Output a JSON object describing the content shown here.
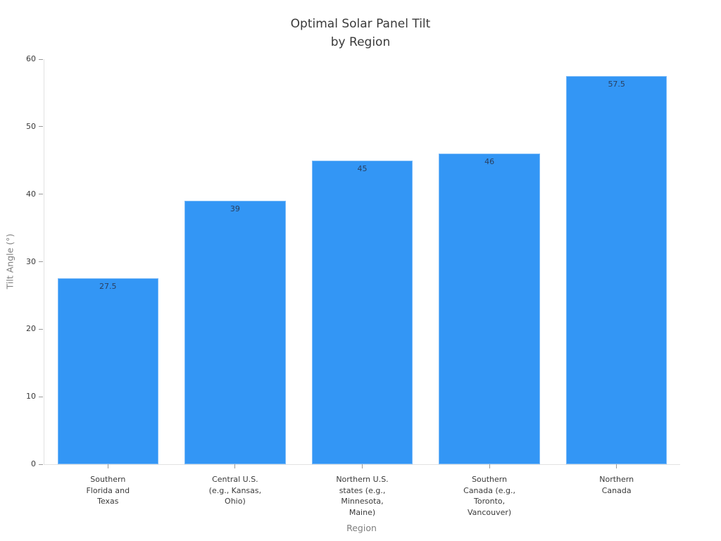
{
  "chart_data": {
    "type": "bar",
    "title": "Optimal Solar Panel Tilt by Region",
    "title_lines": [
      "Optimal Solar Panel Tilt",
      "by Region"
    ],
    "xlabel": "Region",
    "ylabel": "Tilt Angle (°)",
    "categories": [
      [
        "Southern",
        "Florida and",
        "Texas"
      ],
      [
        "Central U.S.",
        "(e.g., Kansas,",
        "Ohio)"
      ],
      [
        "Northern U.S.",
        "states (e.g.,",
        "Minnesota,",
        "Maine)"
      ],
      [
        "Southern",
        "Canada (e.g.,",
        "Toronto,",
        "Vancouver)"
      ],
      [
        "Northern",
        "Canada"
      ]
    ],
    "values": [
      27.5,
      39,
      45,
      46,
      57.5
    ],
    "value_labels": [
      "27.5",
      "39",
      "45",
      "46",
      "57.5"
    ],
    "yticks": [
      0,
      10,
      20,
      30,
      40,
      50,
      60
    ],
    "ylim": [
      0,
      60
    ],
    "grid": false,
    "legend": false,
    "background_color": "#ffffff",
    "bar_color": "#3396f5",
    "value_label_color": "#2a3f5f",
    "axis_line_color": "#e2e2e2",
    "tick_label_color": "#3a3a3a",
    "axis_title_color": "#7f7f7f",
    "title_color": "#3a3a3a"
  }
}
